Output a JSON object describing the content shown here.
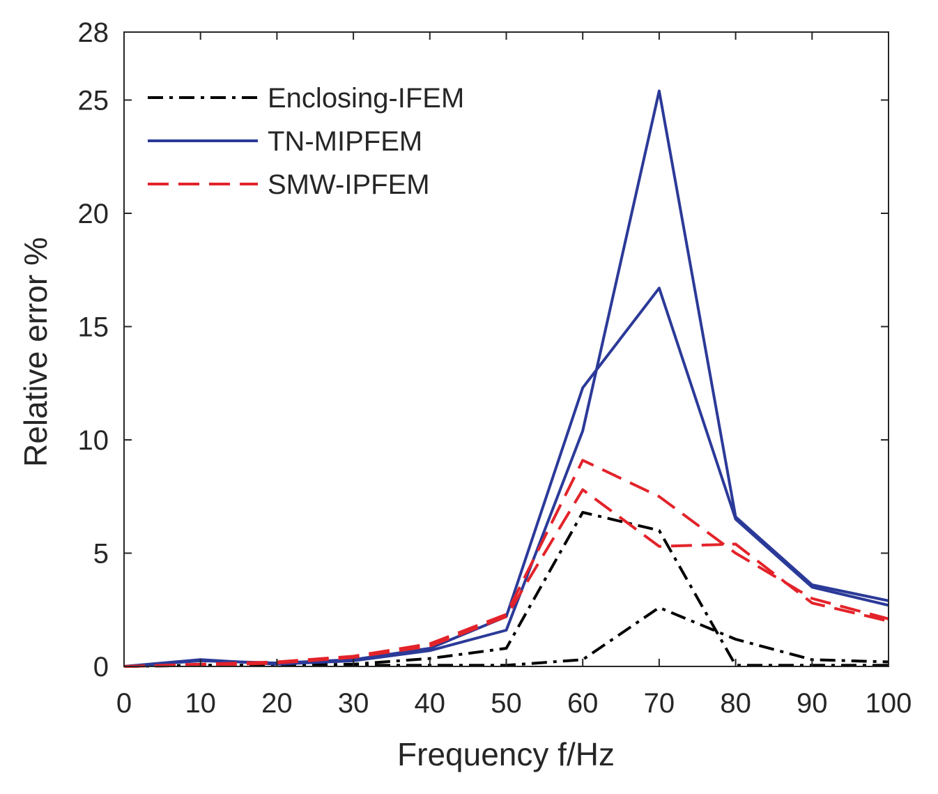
{
  "chart_data": {
    "type": "line",
    "title": "",
    "xlabel": "Frequency  f/Hz",
    "ylabel": "Relative error %",
    "xlim": [
      0,
      100
    ],
    "ylim": [
      0,
      28
    ],
    "xticks": [
      0,
      10,
      20,
      30,
      40,
      50,
      60,
      70,
      80,
      90,
      100
    ],
    "yticks": [
      0,
      5,
      10,
      15,
      20,
      25,
      28
    ],
    "grid": false,
    "legend_position": "top-left",
    "x": [
      0,
      10,
      20,
      30,
      40,
      50,
      60,
      70,
      80,
      90,
      100
    ],
    "series": [
      {
        "name": "Enclosing-IFEM",
        "bound": "upper",
        "values": [
          0,
          0.05,
          0.05,
          0.1,
          0.35,
          0.8,
          6.8,
          6.0,
          0.05,
          0.05,
          0.05
        ]
      },
      {
        "name": "Enclosing-IFEM",
        "bound": "lower",
        "values": [
          0,
          0.05,
          0.05,
          0.05,
          0.05,
          0.05,
          0.3,
          2.6,
          1.2,
          0.3,
          0.2
        ]
      },
      {
        "name": "TN-MIPFEM",
        "bound": "upper",
        "values": [
          0,
          0.3,
          0.1,
          0.25,
          0.7,
          1.6,
          10.4,
          25.4,
          6.6,
          3.6,
          2.9
        ]
      },
      {
        "name": "TN-MIPFEM",
        "bound": "lower",
        "values": [
          0,
          0.25,
          0.15,
          0.3,
          0.8,
          2.2,
          12.3,
          16.7,
          6.5,
          3.5,
          2.7
        ]
      },
      {
        "name": "SMW-IPFEM",
        "bound": "upper",
        "values": [
          0,
          0.1,
          0.2,
          0.45,
          1.0,
          2.3,
          9.1,
          7.5,
          5.0,
          3.0,
          2.1
        ]
      },
      {
        "name": "SMW-IPFEM",
        "bound": "lower",
        "values": [
          0,
          0.05,
          0.15,
          0.4,
          0.9,
          2.2,
          7.8,
          5.3,
          5.4,
          2.8,
          2.0
        ]
      }
    ],
    "legend": [
      {
        "label": "Enclosing-IFEM",
        "style": "dashdot",
        "color": "#000000"
      },
      {
        "label": "TN-MIPFEM",
        "style": "solid",
        "color": "#2b3a98"
      },
      {
        "label": "SMW-IPFEM",
        "style": "dashed",
        "color": "#e3232a"
      }
    ],
    "colors": {
      "Enclosing-IFEM": "#000000",
      "TN-MIPFEM": "#2b3a98",
      "SMW-IPFEM": "#e3232a",
      "axis": "#262626"
    }
  }
}
